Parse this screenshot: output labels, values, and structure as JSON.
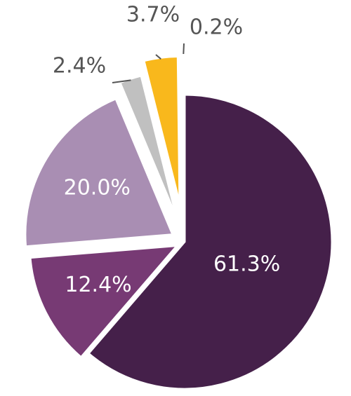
{
  "chart_data": {
    "type": "pie",
    "categories": [
      null,
      null,
      null,
      null,
      null,
      null
    ],
    "values": [
      61.3,
      12.4,
      20.0,
      2.4,
      3.7,
      0.2
    ],
    "value_labels": [
      "61.3%",
      "12.4%",
      "20.0%",
      "2.4%",
      "3.7%",
      "0.2%"
    ],
    "colors": [
      "#45204a",
      "#773a74",
      "#a98eb3",
      "#c0c0c0",
      "#f9b81c",
      "#f5d77a"
    ]
  }
}
